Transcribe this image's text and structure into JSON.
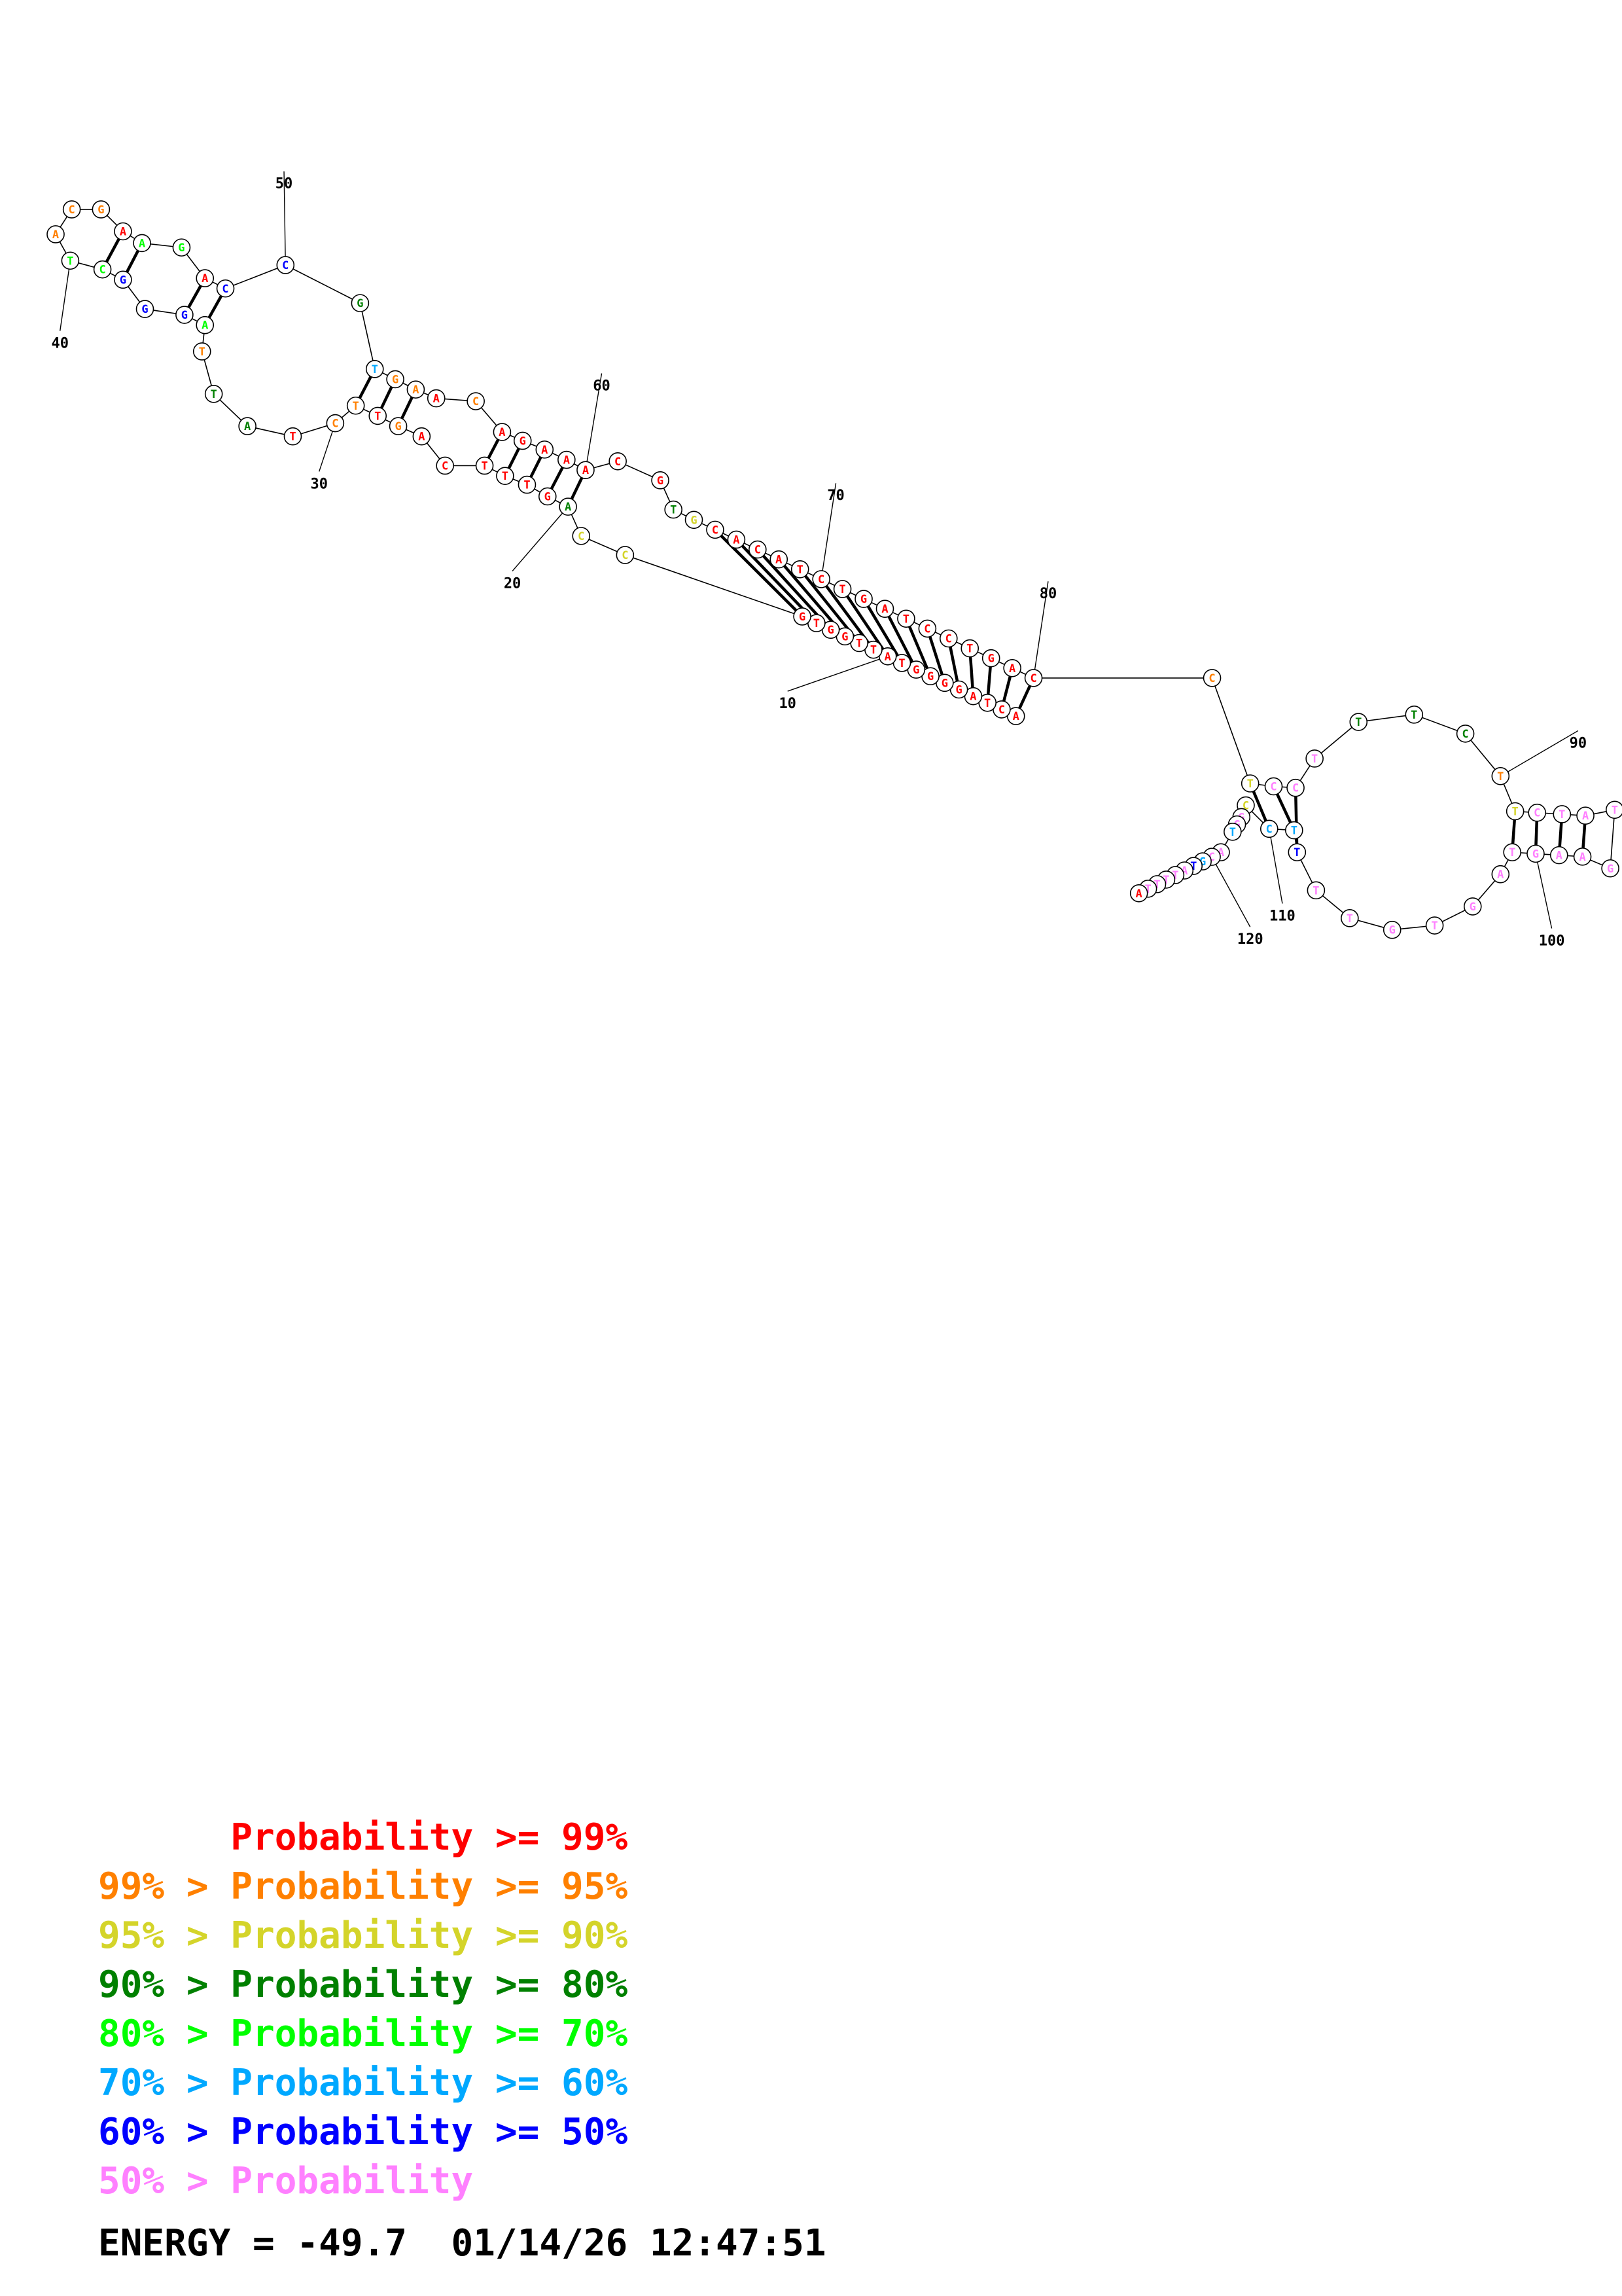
{
  "colors": {
    "p99": "#ff0000",
    "p95": "#ff8000",
    "p90": "#d4d42a",
    "p80": "#008000",
    "p70": "#00ff00",
    "p60": "#00a8ff",
    "p50": "#0000ff",
    "low": "#ff80ff"
  },
  "legend": [
    {
      "prefix": "",
      "text": "Probability >= 99%",
      "color_key": "p99"
    },
    {
      "prefix": "99% > ",
      "text": "Probability >= 95%",
      "color_key": "p95"
    },
    {
      "prefix": "95% > ",
      "text": "Probability >= 90%",
      "color_key": "p90"
    },
    {
      "prefix": "90% > ",
      "text": "Probability >= 80%",
      "color_key": "p80"
    },
    {
      "prefix": "80% > ",
      "text": "Probability >= 70%",
      "color_key": "p70"
    },
    {
      "prefix": "70% > ",
      "text": "Probability >= 60%",
      "color_key": "p60"
    },
    {
      "prefix": "60% > ",
      "text": "Probability >= 50%",
      "color_key": "p50"
    },
    {
      "prefix": "50% > ",
      "text": "Probability",
      "color_key": "low"
    }
  ],
  "footer": {
    "energy": "ENERGY = -49.7",
    "timestamp": "01/14/26 12:47:51"
  },
  "index_labels": [
    "10",
    "20",
    "30",
    "40",
    "50",
    "60",
    "70",
    "80",
    "90",
    "100",
    "110",
    "120"
  ],
  "sequence_note": "",
  "nucleotides": [
    {
      "b": "A",
      "c": "p99"
    },
    {
      "b": "C",
      "c": "p99"
    },
    {
      "b": "T",
      "c": "p99"
    },
    {
      "b": "A",
      "c": "p99"
    },
    {
      "b": "G",
      "c": "p99"
    },
    {
      "b": "G",
      "c": "p99"
    },
    {
      "b": "G",
      "c": "p99"
    },
    {
      "b": "G",
      "c": "p99"
    },
    {
      "b": "T",
      "c": "p99"
    },
    {
      "b": "A",
      "c": "p99"
    },
    {
      "b": "T",
      "c": "p99"
    },
    {
      "b": "T",
      "c": "p99"
    },
    {
      "b": "G",
      "c": "p99"
    },
    {
      "b": "G",
      "c": "p99"
    },
    {
      "b": "T",
      "c": "p99"
    },
    {
      "b": "G",
      "c": "p99"
    },
    {
      "b": "C",
      "c": "p90"
    },
    {
      "b": "C",
      "c": "p90"
    },
    {
      "b": "A",
      "c": "p80"
    },
    {
      "b": "G",
      "c": "p99"
    },
    {
      "b": "T",
      "c": "p99"
    },
    {
      "b": "T",
      "c": "p99"
    },
    {
      "b": "T",
      "c": "p99"
    },
    {
      "b": "C",
      "c": "p99"
    },
    {
      "b": "A",
      "c": "p99"
    },
    {
      "b": "G",
      "c": "p95"
    },
    {
      "b": "T",
      "c": "p99"
    },
    {
      "b": "T",
      "c": "p95"
    },
    {
      "b": "C",
      "c": "p95"
    },
    {
      "b": "T",
      "c": "p99"
    },
    {
      "b": "A",
      "c": "p80"
    },
    {
      "b": "T",
      "c": "p80"
    },
    {
      "b": "T",
      "c": "p95"
    },
    {
      "b": "A",
      "c": "p70"
    },
    {
      "b": "G",
      "c": "p50"
    },
    {
      "b": "G",
      "c": "p50"
    },
    {
      "b": "G",
      "c": "p50"
    },
    {
      "b": "C",
      "c": "p70"
    },
    {
      "b": "T",
      "c": "p70"
    },
    {
      "b": "A",
      "c": "p95"
    },
    {
      "b": "C",
      "c": "p95"
    },
    {
      "b": "G",
      "c": "p95"
    },
    {
      "b": "A",
      "c": "p99"
    },
    {
      "b": "A",
      "c": "p70"
    },
    {
      "b": "G",
      "c": "p70"
    },
    {
      "b": "A",
      "c": "p99"
    },
    {
      "b": "C",
      "c": "p50"
    },
    {
      "b": "C",
      "c": "p50"
    },
    {
      "b": "G",
      "c": "p80"
    },
    {
      "b": "T",
      "c": "p60"
    },
    {
      "b": "G",
      "c": "p95"
    },
    {
      "b": "A",
      "c": "p95"
    },
    {
      "b": "A",
      "c": "p99"
    },
    {
      "b": "C",
      "c": "p95"
    },
    {
      "b": "A",
      "c": "p99"
    },
    {
      "b": "G",
      "c": "p99"
    },
    {
      "b": "A",
      "c": "p99"
    },
    {
      "b": "A",
      "c": "p99"
    },
    {
      "b": "A",
      "c": "p99"
    },
    {
      "b": "C",
      "c": "p99"
    },
    {
      "b": "G",
      "c": "p99"
    },
    {
      "b": "T",
      "c": "p80"
    },
    {
      "b": "G",
      "c": "p90"
    },
    {
      "b": "C",
      "c": "p99"
    },
    {
      "b": "A",
      "c": "p99"
    },
    {
      "b": "C",
      "c": "p99"
    },
    {
      "b": "A",
      "c": "p99"
    },
    {
      "b": "T",
      "c": "p99"
    },
    {
      "b": "C",
      "c": "p99"
    },
    {
      "b": "T",
      "c": "p99"
    },
    {
      "b": "G",
      "c": "p99"
    },
    {
      "b": "A",
      "c": "p99"
    },
    {
      "b": "T",
      "c": "p99"
    },
    {
      "b": "C",
      "c": "p99"
    },
    {
      "b": "C",
      "c": "p99"
    },
    {
      "b": "T",
      "c": "p99"
    },
    {
      "b": "G",
      "c": "p99"
    },
    {
      "b": "A",
      "c": "p99"
    },
    {
      "b": "C",
      "c": "p99"
    },
    {
      "b": "C",
      "c": "p95"
    },
    {
      "b": "T",
      "c": "p90"
    },
    {
      "b": "C",
      "c": "low"
    },
    {
      "b": "C",
      "c": "low"
    },
    {
      "b": "T",
      "c": "low"
    },
    {
      "b": "T",
      "c": "p80"
    },
    {
      "b": "T",
      "c": "p80"
    },
    {
      "b": "C",
      "c": "p80"
    },
    {
      "b": "T",
      "c": "p95"
    },
    {
      "b": "T",
      "c": "p90"
    },
    {
      "b": "C",
      "c": "low"
    },
    {
      "b": "T",
      "c": "low"
    },
    {
      "b": "A",
      "c": "low"
    },
    {
      "b": "T",
      "c": "low"
    },
    {
      "b": "G",
      "c": "low"
    },
    {
      "b": "A",
      "c": "low"
    },
    {
      "b": "A",
      "c": "low"
    },
    {
      "b": "G",
      "c": "low"
    },
    {
      "b": "T",
      "c": "low"
    },
    {
      "b": "A",
      "c": "low"
    },
    {
      "b": "G",
      "c": "low"
    },
    {
      "b": "T",
      "c": "low"
    },
    {
      "b": "G",
      "c": "low"
    },
    {
      "b": "T",
      "c": "low"
    },
    {
      "b": "T",
      "c": "low"
    },
    {
      "b": "T",
      "c": "p50"
    },
    {
      "b": "T",
      "c": "p60"
    },
    {
      "b": "C",
      "c": "p60"
    },
    {
      "b": "C",
      "c": "p90"
    },
    {
      "b": "G",
      "c": "low"
    },
    {
      "b": "G",
      "c": "low"
    },
    {
      "b": "T",
      "c": "p60"
    },
    {
      "b": "A",
      "c": "low"
    },
    {
      "b": "C",
      "c": "low"
    },
    {
      "b": "G",
      "c": "p60"
    },
    {
      "b": "T",
      "c": "p50"
    },
    {
      "b": "A",
      "c": "low"
    },
    {
      "b": "T",
      "c": "low"
    },
    {
      "b": "T",
      "c": "low"
    },
    {
      "b": "T",
      "c": "low"
    },
    {
      "b": "T",
      "c": "low"
    },
    {
      "b": "A",
      "c": "p99"
    }
  ]
}
